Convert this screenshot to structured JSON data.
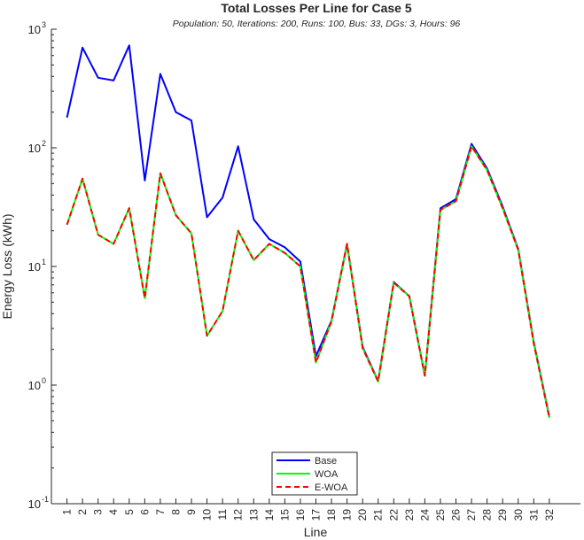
{
  "chart_data": {
    "type": "line",
    "title": "Total Losses Per Line for Case 5",
    "subtitle": "Population: 50, Iterations: 200, Runs: 100, Bus: 33, DGs: 3, Hours: 96",
    "xlabel": "Line",
    "ylabel": "Energy Loss (kWh)",
    "y_scale": "log",
    "ylim": [
      0.1,
      1000
    ],
    "xlim": [
      0,
      34
    ],
    "grid": false,
    "legend_position": "bottom-center",
    "x": [
      1,
      2,
      3,
      4,
      5,
      6,
      7,
      8,
      9,
      10,
      11,
      12,
      13,
      14,
      15,
      16,
      17,
      18,
      19,
      20,
      21,
      22,
      23,
      24,
      25,
      26,
      27,
      28,
      29,
      30,
      31,
      32
    ],
    "x_tick_labels": [
      "1",
      "2",
      "3",
      "4",
      "5",
      "6",
      "7",
      "8",
      "9",
      "10",
      "11",
      "12",
      "13",
      "14",
      "15",
      "16",
      "17",
      "18",
      "19",
      "20",
      "21",
      "22",
      "23",
      "24",
      "25",
      "26",
      "27",
      "28",
      "29",
      "30",
      "31",
      "32"
    ],
    "y_ticks": [
      {
        "value": 0.1,
        "base": "10",
        "exp": "-1"
      },
      {
        "value": 1,
        "base": "10",
        "exp": "0"
      },
      {
        "value": 10,
        "base": "10",
        "exp": "1"
      },
      {
        "value": 100,
        "base": "10",
        "exp": "2"
      },
      {
        "value": 1000,
        "base": "10",
        "exp": "3"
      }
    ],
    "series": [
      {
        "name": "Base",
        "color": "#0000ff",
        "dash": "solid",
        "values": [
          180,
          700,
          390,
          370,
          730,
          53,
          420,
          200,
          170,
          26,
          38,
          103,
          25,
          17,
          14.5,
          11,
          1.75,
          3.5,
          15.5,
          2.1,
          1.08,
          7.4,
          5.6,
          1.2,
          31,
          37,
          108,
          67,
          32,
          14,
          2.3,
          0.54
        ]
      },
      {
        "name": "WOA",
        "color": "#00ff00",
        "dash": "solid",
        "values": [
          22.5,
          55,
          18.5,
          15.5,
          31,
          5.4,
          61,
          27,
          19,
          2.6,
          4.2,
          20,
          11.3,
          15.5,
          13,
          10,
          1.55,
          3.45,
          15.5,
          2.05,
          1.07,
          7.3,
          5.6,
          1.2,
          30,
          35.5,
          103,
          65,
          31,
          13.8,
          2.25,
          0.53
        ]
      },
      {
        "name": "E-WOA",
        "color": "#ff0000",
        "dash": "dashed",
        "values": [
          22.5,
          55,
          18.5,
          15.5,
          31,
          5.4,
          61,
          27,
          19,
          2.6,
          4.2,
          20,
          11.3,
          15.5,
          13,
          10,
          1.55,
          3.45,
          15.5,
          2.05,
          1.07,
          7.3,
          5.6,
          1.2,
          30,
          35.5,
          103,
          65,
          31,
          13.8,
          2.25,
          0.53
        ]
      }
    ]
  }
}
